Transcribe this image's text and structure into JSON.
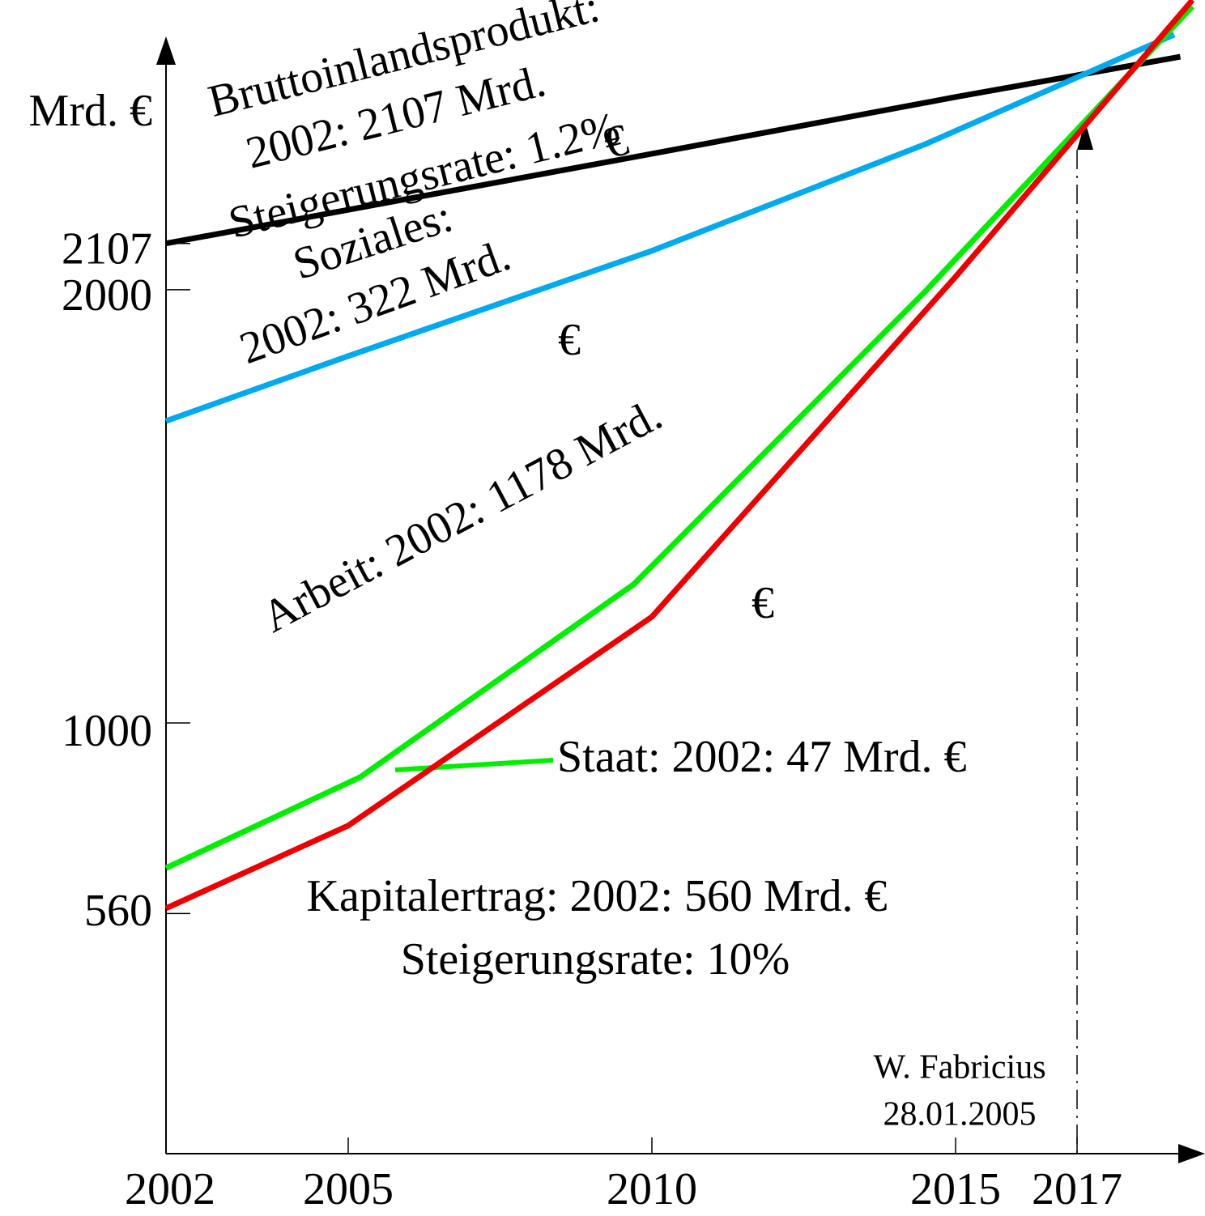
{
  "chart_data": {
    "type": "line",
    "y_label": "Mrd. €",
    "xlim": [
      2002,
      2019
    ],
    "ylim": [
      0,
      2669
    ],
    "xticks": [
      2002,
      2005,
      2010,
      2015,
      2017
    ],
    "yticks": [
      560,
      1000,
      2000,
      2107
    ],
    "series": [
      {
        "name": "Bruttoinlandsprodukt",
        "color": "#000000",
        "x": [
          2002,
          2010,
          2015,
          2018.7
        ],
        "values": [
          2107,
          2314,
          2445,
          2538
        ]
      },
      {
        "name": "Soziales",
        "color": "#00aaee",
        "x": [
          2002,
          2005,
          2010,
          2014.5,
          2018.6
        ],
        "values": [
          1697,
          1847,
          2090,
          2336,
          2589
        ]
      },
      {
        "name": "Staat",
        "color": "#00ee00",
        "x": [
          2002,
          2005.2,
          2009.7,
          2014.5,
          2018.9
        ],
        "values": [
          665,
          875,
          1320,
          1996,
          2654
        ]
      },
      {
        "name": "Kapitalertrag",
        "color": "#ee0000",
        "x": [
          2002,
          2005,
          2010,
          2015,
          2018.9
        ],
        "values": [
          572,
          763,
          1245,
          2030,
          2669
        ]
      }
    ],
    "annotations": [
      "Bruttoinlandsprodukt:",
      "2002: 2107 Mrd.",
      "Steigerungsrate: 1.2%",
      "€",
      "Soziales:",
      "2002: 322 Mrd.",
      "€",
      "Arbeit: 2002: 1178 Mrd.",
      "€",
      "Staat: 2002: 47 Mrd. €",
      "Kapitalertrag: 2002: 560 Mrd. €",
      "Steigerungsrate: 10%",
      "W. Fabricius",
      "28.01.2005"
    ]
  }
}
